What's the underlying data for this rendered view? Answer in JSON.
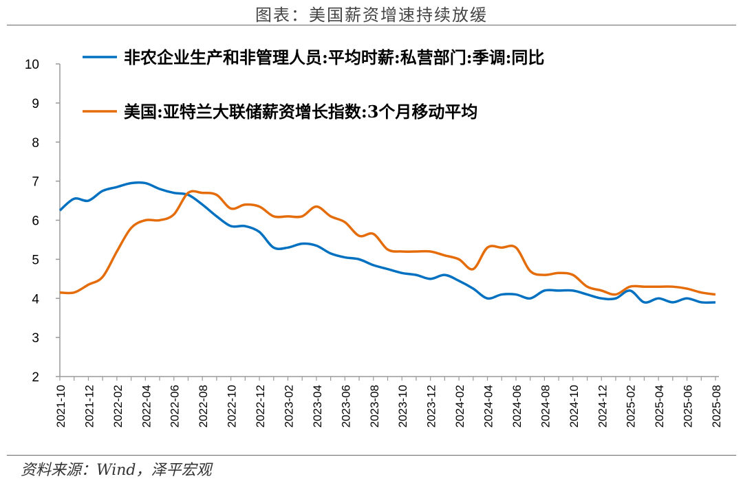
{
  "title": "图表：美国薪资增速持续放缓",
  "source": "资料来源：Wind，泽平宏观",
  "chart_data": {
    "type": "line",
    "title": "",
    "xlabel": "",
    "ylabel": "",
    "ylim": [
      2,
      10
    ],
    "yticks": [
      "2",
      "3",
      "4",
      "5",
      "6",
      "7",
      "8",
      "9",
      "10"
    ],
    "grid": false,
    "legend_position": "top",
    "x": [
      "2021-10",
      "2021-11",
      "2021-12",
      "2022-01",
      "2022-02",
      "2022-03",
      "2022-04",
      "2022-05",
      "2022-06",
      "2022-07",
      "2022-08",
      "2022-09",
      "2022-10",
      "2022-11",
      "2022-12",
      "2023-01",
      "2023-02",
      "2023-03",
      "2023-04",
      "2023-05",
      "2023-06",
      "2023-07",
      "2023-08",
      "2023-09",
      "2023-10",
      "2023-11",
      "2023-12",
      "2024-01",
      "2024-02",
      "2024-03",
      "2024-04",
      "2024-05",
      "2024-06",
      "2024-07",
      "2024-08",
      "2024-09",
      "2024-10",
      "2024-11",
      "2024-12",
      "2025-01",
      "2025-02",
      "2025-03",
      "2025-04",
      "2025-05",
      "2025-06",
      "2025-07",
      "2025-08"
    ],
    "xtick_labels": [
      "2021-10",
      "2021-12",
      "2022-02",
      "2022-04",
      "2022-06",
      "2022-08",
      "2022-10",
      "2022-12",
      "2023-02",
      "2023-04",
      "2023-06",
      "2023-08",
      "2023-10",
      "2023-12",
      "2024-02",
      "2024-04",
      "2024-06",
      "2024-08",
      "2024-10",
      "2024-12",
      "2025-02",
      "2025-04",
      "2025-06",
      "2025-08"
    ],
    "series": [
      {
        "name": "非农企业生产和非管理人员:平均时薪:私营部门:季调:同比",
        "color": "#0070C0",
        "values": [
          6.25,
          6.55,
          6.5,
          6.75,
          6.85,
          6.95,
          6.95,
          6.8,
          6.7,
          6.65,
          6.4,
          6.1,
          5.85,
          5.85,
          5.7,
          5.3,
          5.3,
          5.4,
          5.35,
          5.15,
          5.05,
          5.0,
          4.85,
          4.75,
          4.65,
          4.6,
          4.5,
          4.6,
          4.45,
          4.25,
          4.0,
          4.1,
          4.1,
          4.0,
          4.2,
          4.2,
          4.2,
          4.1,
          4.0,
          4.0,
          4.2,
          3.9,
          4.0,
          3.9,
          4.0,
          3.9,
          3.9
        ]
      },
      {
        "name": "美国:亚特兰大联储薪资增长指数:3个月移动平均",
        "color": "#E46C0A",
        "values": [
          4.15,
          4.15,
          4.35,
          4.55,
          5.2,
          5.8,
          6.0,
          6.0,
          6.15,
          6.7,
          6.7,
          6.65,
          6.3,
          6.4,
          6.35,
          6.1,
          6.1,
          6.1,
          6.35,
          6.1,
          5.95,
          5.6,
          5.65,
          5.25,
          5.2,
          5.2,
          5.2,
          5.1,
          5.0,
          4.75,
          5.3,
          5.3,
          5.3,
          4.7,
          4.6,
          4.65,
          4.6,
          4.3,
          4.2,
          4.1,
          4.3,
          4.3,
          4.3,
          4.3,
          4.25,
          4.15,
          4.1
        ]
      }
    ]
  }
}
